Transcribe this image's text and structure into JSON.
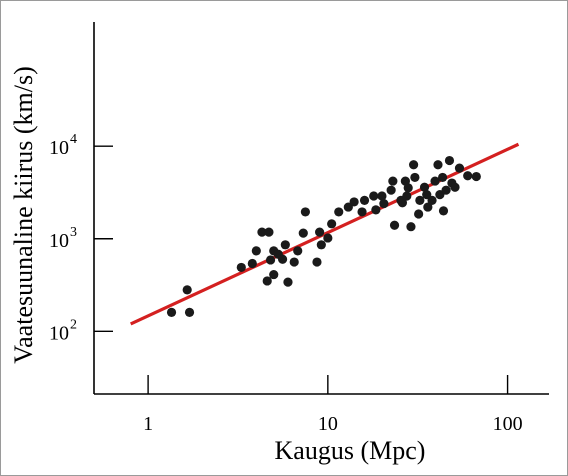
{
  "chart_data": {
    "type": "scatter",
    "title": "",
    "xlabel": "Kaugus (Mpc)",
    "ylabel": "Vaatesuunaline kiirus (km/s)",
    "x_scale": "log",
    "y_scale": "log",
    "xlim": [
      0.5,
      170
    ],
    "ylim": [
      21,
      220000
    ],
    "grid": false,
    "legend": "none",
    "x_ticks": [
      {
        "value": 1,
        "label": "1"
      },
      {
        "value": 10,
        "label": "10"
      },
      {
        "value": 100,
        "label": "100"
      }
    ],
    "y_ticks": [
      {
        "value": 100,
        "base": "10",
        "exp": "2"
      },
      {
        "value": 1000,
        "base": "10",
        "exp": "3"
      },
      {
        "value": 10000,
        "base": "10",
        "exp": "4"
      }
    ],
    "series": [
      {
        "marker_color": "#1a1a1a",
        "points": [
          {
            "x": 1.35,
            "y": 160
          },
          {
            "x": 1.65,
            "y": 280
          },
          {
            "x": 1.7,
            "y": 160
          },
          {
            "x": 3.3,
            "y": 490
          },
          {
            "x": 3.8,
            "y": 540
          },
          {
            "x": 4.0,
            "y": 740
          },
          {
            "x": 4.3,
            "y": 1180
          },
          {
            "x": 4.6,
            "y": 350
          },
          {
            "x": 4.7,
            "y": 1180
          },
          {
            "x": 4.8,
            "y": 590
          },
          {
            "x": 5.0,
            "y": 740
          },
          {
            "x": 5.0,
            "y": 410
          },
          {
            "x": 5.3,
            "y": 680
          },
          {
            "x": 5.6,
            "y": 600
          },
          {
            "x": 5.8,
            "y": 860
          },
          {
            "x": 6.0,
            "y": 340
          },
          {
            "x": 6.5,
            "y": 560
          },
          {
            "x": 6.8,
            "y": 740
          },
          {
            "x": 7.3,
            "y": 1150
          },
          {
            "x": 7.5,
            "y": 1950
          },
          {
            "x": 8.7,
            "y": 560
          },
          {
            "x": 9.0,
            "y": 1180
          },
          {
            "x": 9.2,
            "y": 860
          },
          {
            "x": 10.0,
            "y": 1020
          },
          {
            "x": 10.5,
            "y": 1450
          },
          {
            "x": 11.5,
            "y": 1950
          },
          {
            "x": 13.0,
            "y": 2200
          },
          {
            "x": 14.0,
            "y": 2500
          },
          {
            "x": 15.5,
            "y": 1950
          },
          {
            "x": 16.0,
            "y": 2600
          },
          {
            "x": 18.0,
            "y": 2900
          },
          {
            "x": 18.5,
            "y": 2050
          },
          {
            "x": 20.0,
            "y": 2900
          },
          {
            "x": 20.5,
            "y": 2400
          },
          {
            "x": 22.5,
            "y": 3350
          },
          {
            "x": 23.0,
            "y": 4200
          },
          {
            "x": 23.5,
            "y": 1400
          },
          {
            "x": 25.5,
            "y": 2600
          },
          {
            "x": 26.0,
            "y": 2450
          },
          {
            "x": 27.0,
            "y": 4200
          },
          {
            "x": 27.5,
            "y": 2900
          },
          {
            "x": 28.0,
            "y": 3550
          },
          {
            "x": 29.0,
            "y": 1350
          },
          {
            "x": 30.0,
            "y": 6300
          },
          {
            "x": 30.5,
            "y": 4600
          },
          {
            "x": 32.0,
            "y": 1850
          },
          {
            "x": 32.5,
            "y": 2600
          },
          {
            "x": 34.5,
            "y": 3600
          },
          {
            "x": 35.5,
            "y": 3000
          },
          {
            "x": 36.0,
            "y": 2200
          },
          {
            "x": 38.0,
            "y": 2600
          },
          {
            "x": 39.5,
            "y": 4200
          },
          {
            "x": 41.0,
            "y": 6300
          },
          {
            "x": 42.0,
            "y": 3000
          },
          {
            "x": 43.5,
            "y": 4600
          },
          {
            "x": 44.0,
            "y": 2000
          },
          {
            "x": 45.5,
            "y": 3350
          },
          {
            "x": 47.5,
            "y": 7000
          },
          {
            "x": 49.0,
            "y": 4000
          },
          {
            "x": 51.0,
            "y": 3600
          },
          {
            "x": 54.0,
            "y": 5800
          },
          {
            "x": 60.0,
            "y": 4800
          },
          {
            "x": 67.0,
            "y": 4700
          }
        ]
      }
    ],
    "fit_line": {
      "color": "#d42020",
      "points": [
        {
          "x": 0.8,
          "y": 120
        },
        {
          "x": 115,
          "y": 10500
        }
      ]
    }
  }
}
